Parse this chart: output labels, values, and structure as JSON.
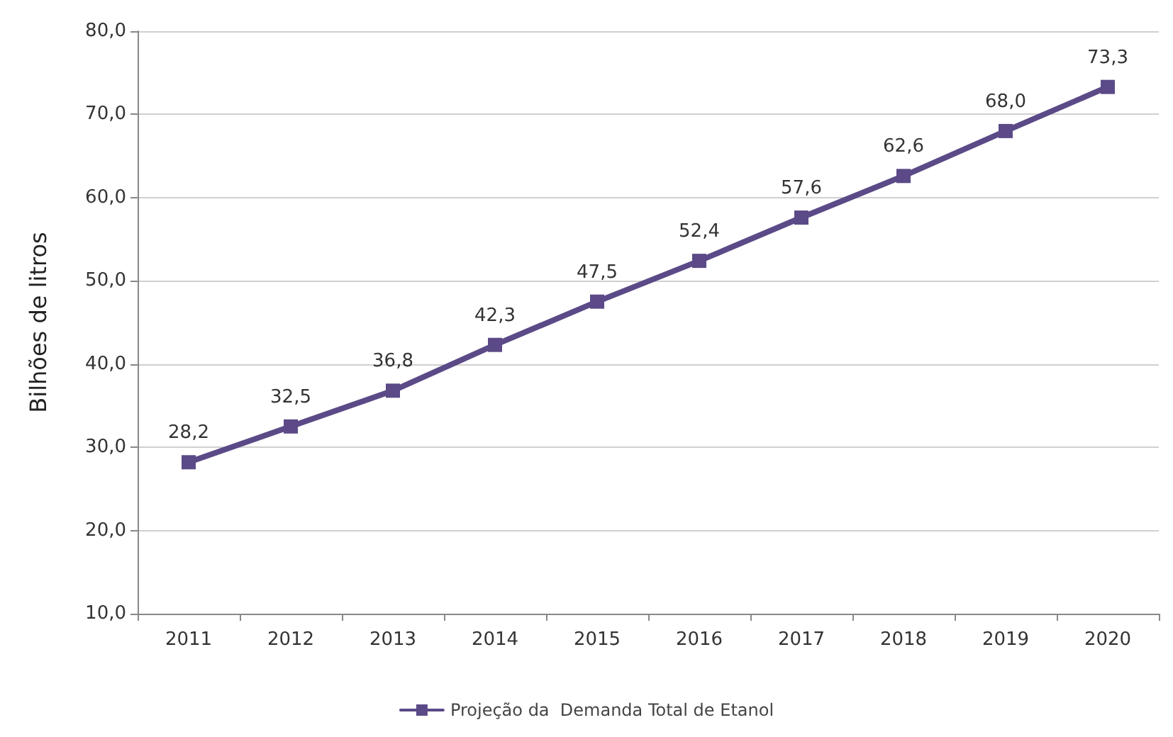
{
  "chart_data": {
    "type": "line",
    "ylabel": "Bilhões de litros",
    "categories": [
      "2011",
      "2012",
      "2013",
      "2014",
      "2015",
      "2016",
      "2017",
      "2018",
      "2019",
      "2020"
    ],
    "series": [
      {
        "name": "Projeção da  Demanda Total de Etanol",
        "color": "#5b4a87",
        "values": [
          28.2,
          32.5,
          36.8,
          42.3,
          47.5,
          52.4,
          57.6,
          62.6,
          68.0,
          73.3
        ],
        "value_labels": [
          "28,2",
          "32,5",
          "36,8",
          "42,3",
          "47,5",
          "52,4",
          "57,6",
          "62,6",
          "68,0",
          "73,3"
        ]
      }
    ],
    "ylim": [
      10,
      80
    ],
    "yticks": [
      {
        "value": 10,
        "label": "10,0"
      },
      {
        "value": 20,
        "label": "20,0"
      },
      {
        "value": 30,
        "label": "30,0"
      },
      {
        "value": 40,
        "label": "40,0"
      },
      {
        "value": 50,
        "label": "50,0"
      },
      {
        "value": 60,
        "label": "60,0"
      },
      {
        "value": 70,
        "label": "70,0"
      },
      {
        "value": 80,
        "label": "80,0"
      }
    ],
    "grid": "y",
    "legend": "bottom",
    "marker": "square",
    "line_style": "solid"
  }
}
